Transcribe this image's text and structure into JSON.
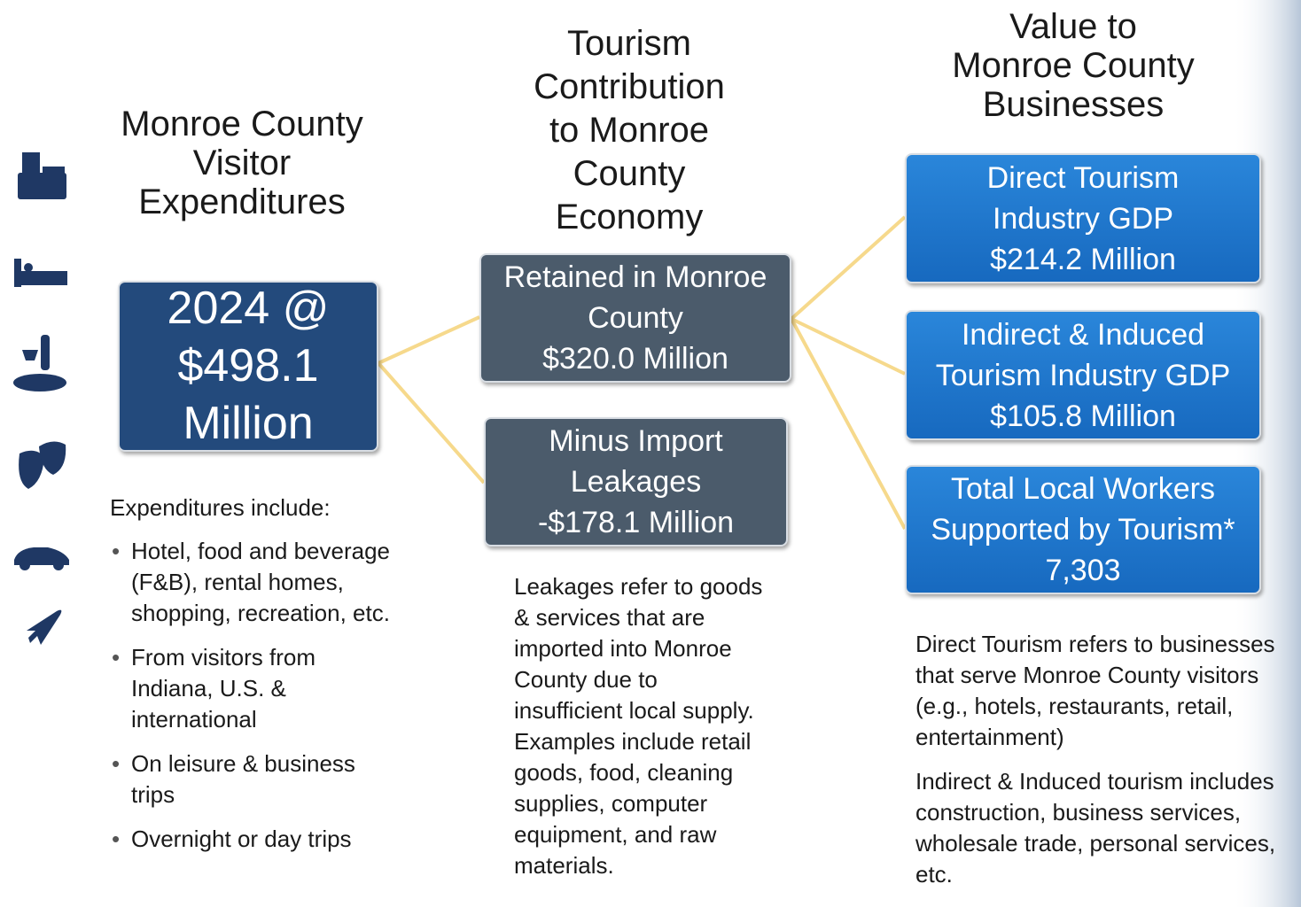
{
  "left": {
    "title": [
      "Monroe County",
      "Visitor",
      "Expenditures"
    ],
    "box": [
      "2024 @",
      "$498.1",
      "Million"
    ],
    "list_heading": "Expenditures include:",
    "items": [
      "Hotel, food and beverage (F&B), rental homes, shopping, recreation, etc.",
      "From visitors from Indiana, U.S. & international",
      "On leisure & business trips",
      "Overnight or day trips"
    ]
  },
  "middle": {
    "title": [
      "Tourism",
      "Contribution",
      "to Monroe",
      "County",
      "Economy"
    ],
    "boxes": [
      [
        "Retained in Monroe",
        "County",
        "$320.0 Million"
      ],
      [
        "Minus Import",
        "Leakages",
        "-$178.1 Million"
      ]
    ],
    "note": "Leakages refer to goods & services that are imported into Monroe County due to insufficient local supply. Examples include retail goods, food, cleaning supplies, computer equipment, and raw materials."
  },
  "right": {
    "title": [
      "Value to",
      "Monroe County",
      "Businesses"
    ],
    "boxes": [
      [
        "Direct Tourism",
        "Industry GDP",
        "$214.2 Million"
      ],
      [
        "Indirect & Induced",
        "Tourism Industry GDP",
        "$105.8 Million"
      ],
      [
        "Total Local Workers",
        "Supported by Tourism*",
        "7,303"
      ]
    ],
    "notes": [
      "Direct Tourism refers to businesses that serve Monroe County visitors (e.g., hotels, restaurants, retail, entertainment)",
      "Indirect & Induced tourism includes construction, business services, wholesale trade, personal services, etc."
    ]
  }
}
